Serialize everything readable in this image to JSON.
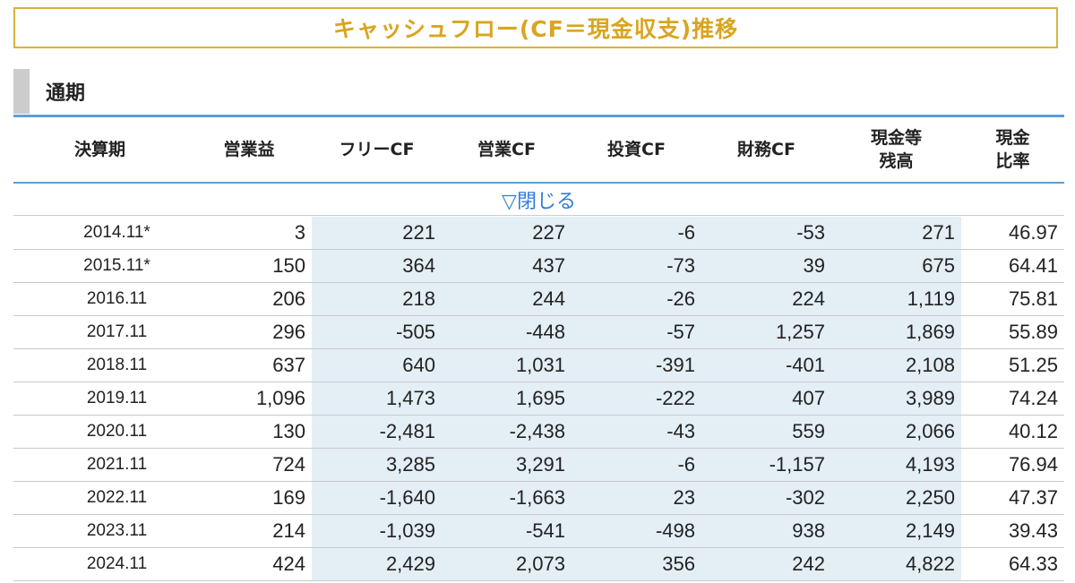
{
  "title": "キャッシュフロー(CF＝現金収支)推移",
  "section": "通期",
  "columns": [
    "決算期",
    "営業益",
    "フリーCF",
    "営業CF",
    "投資CF",
    "財務CF",
    "現金等\n残高",
    "現金\n比率"
  ],
  "toggle_label": "▽閉じる",
  "rows": [
    [
      "2014.11*",
      "3",
      "221",
      "227",
      "-6",
      "-53",
      "271",
      "46.97"
    ],
    [
      "2015.11*",
      "150",
      "364",
      "437",
      "-73",
      "39",
      "675",
      "64.41"
    ],
    [
      "2016.11",
      "206",
      "218",
      "244",
      "-26",
      "224",
      "1,119",
      "75.81"
    ],
    [
      "2017.11",
      "296",
      "-505",
      "-448",
      "-57",
      "1,257",
      "1,869",
      "55.89"
    ],
    [
      "2018.11",
      "637",
      "640",
      "1,031",
      "-391",
      "-401",
      "2,108",
      "51.25"
    ],
    [
      "2019.11",
      "1,096",
      "1,473",
      "1,695",
      "-222",
      "407",
      "3,989",
      "74.24"
    ],
    [
      "2020.11",
      "130",
      "-2,481",
      "-2,438",
      "-43",
      "559",
      "2,066",
      "40.12"
    ],
    [
      "2021.11",
      "724",
      "3,285",
      "3,291",
      "-6",
      "-1,157",
      "4,193",
      "76.94"
    ],
    [
      "2022.11",
      "169",
      "-1,640",
      "-1,663",
      "23",
      "-302",
      "2,250",
      "47.37"
    ],
    [
      "2023.11",
      "214",
      "-1,039",
      "-541",
      "-498",
      "938",
      "2,149",
      "39.43"
    ],
    [
      "2024.11",
      "424",
      "2,429",
      "2,073",
      "356",
      "242",
      "4,822",
      "64.33"
    ]
  ]
}
